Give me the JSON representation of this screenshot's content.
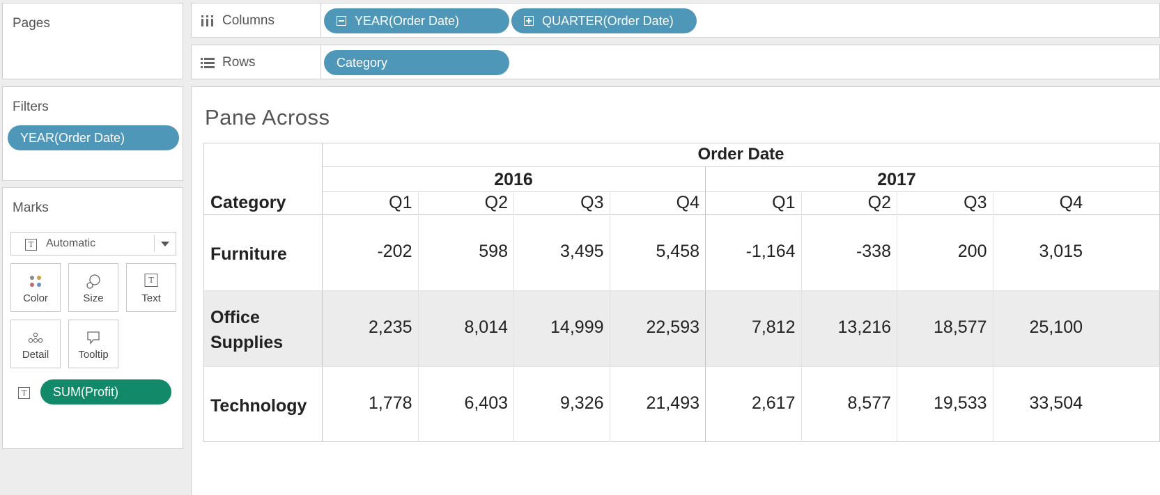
{
  "left": {
    "pages_title": "Pages",
    "filters_title": "Filters",
    "filter_pill": "YEAR(Order Date)",
    "marks_title": "Marks",
    "mark_type": "Automatic",
    "mark_buttons": [
      "Color",
      "Size",
      "Text",
      "Detail",
      "Tooltip"
    ],
    "measure_pill": "SUM(Profit)",
    "measure_pill_color": "#128a6a"
  },
  "shelves": {
    "columns_label": "Columns",
    "columns_pills": [
      "YEAR(Order Date)",
      "QUARTER(Order Date)"
    ],
    "rows_label": "Rows",
    "rows_pills": [
      "Category"
    ],
    "pill_color": "#4e97b8"
  },
  "view": {
    "title": "Pane Across",
    "column_header": "Order Date",
    "row_header": "Category",
    "years": [
      "2016",
      "2017"
    ],
    "quarters": [
      "Q1",
      "Q2",
      "Q3",
      "Q4",
      "Q1",
      "Q2",
      "Q3",
      "Q4"
    ],
    "rows": [
      {
        "category": [
          "Furniture"
        ],
        "values": [
          "-202",
          "598",
          "3,495",
          "5,458",
          "-1,164",
          "-338",
          "200",
          "3,015"
        ]
      },
      {
        "category": [
          "Office",
          "Supplies"
        ],
        "values": [
          "2,235",
          "8,014",
          "14,999",
          "22,593",
          "7,812",
          "13,216",
          "18,577",
          "25,100"
        ]
      },
      {
        "category": [
          "Technology"
        ],
        "values": [
          "1,778",
          "6,403",
          "9,326",
          "21,493",
          "2,617",
          "8,577",
          "19,533",
          "33,504"
        ]
      }
    ]
  }
}
